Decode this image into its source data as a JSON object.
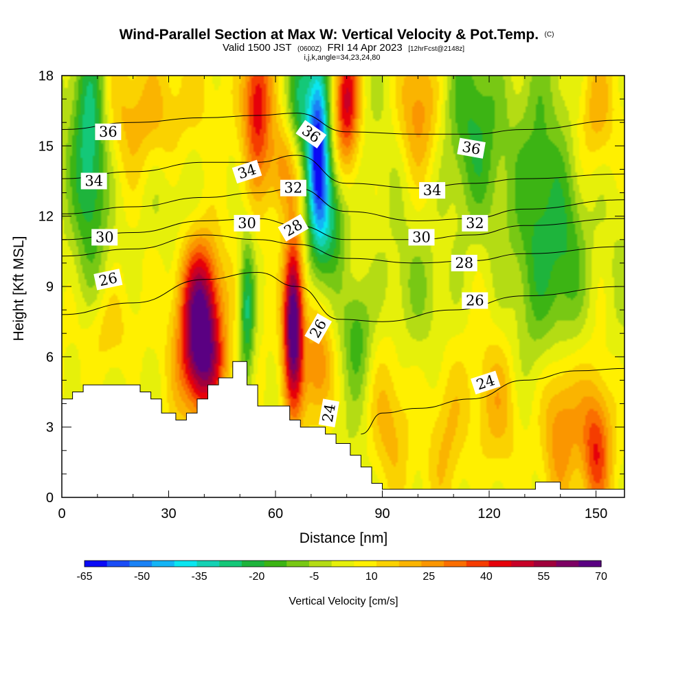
{
  "title": {
    "main": "Wind-Parallel Section at Max W: Vertical Velocity & Pot.Temp.",
    "copyright": "(C)",
    "valid_prefix": "Valid 1500 JST",
    "valid_utc": "(0600Z)",
    "valid_date": "FRI 14 Apr 2023",
    "forecast": "[12hrFcst@2148z]",
    "indices": "i,j,k,angle=34,23,24,80"
  },
  "axes": {
    "xlabel": "Distance [nm]",
    "ylabel": "Height [Kft MSL]",
    "xlim": [
      0,
      158
    ],
    "ylim": [
      0,
      18
    ],
    "xticks": [
      0,
      30,
      60,
      90,
      120,
      150
    ],
    "yticks": [
      0,
      3,
      6,
      9,
      12,
      15,
      18
    ]
  },
  "colorbar": {
    "label": "Vertical Velocity [cm/s]",
    "tick_labels": [
      "-65",
      "-50",
      "-35",
      "-20",
      "-5",
      "10",
      "25",
      "40",
      "55",
      "70"
    ],
    "colors": [
      "#0a0af5",
      "#1a4cf5",
      "#1a82f5",
      "#14b4f5",
      "#0ae6f0",
      "#14d2b4",
      "#14c878",
      "#1eb43c",
      "#3cb414",
      "#78c814",
      "#b4dc14",
      "#e6f00a",
      "#fff000",
      "#fad200",
      "#fab400",
      "#fa9600",
      "#fa6e00",
      "#f53c00",
      "#e6000a",
      "#c80028",
      "#a0003c",
      "#7d0064",
      "#5a0082"
    ],
    "min": -65,
    "max": 70
  },
  "chart_data": {
    "type": "heatmap",
    "title": "Wind-Parallel Section at Max W: Vertical Velocity & Pot.Temp.",
    "xlabel": "Distance [nm]",
    "ylabel": "Height [Kft MSL]",
    "xlim": [
      0,
      158
    ],
    "ylim": [
      0,
      18
    ],
    "field": "Vertical Velocity [cm/s]",
    "field_range": [
      -65,
      70
    ],
    "background_value": 3,
    "features": [
      {
        "x": 39,
        "y": 7.6,
        "sx": 4.2,
        "sy": 2.4,
        "value": 70
      },
      {
        "x": 41,
        "y": 5.4,
        "sx": 5,
        "sy": 1.4,
        "value": 20
      },
      {
        "x": 65,
        "y": 7.6,
        "sx": 2,
        "sy": 2.6,
        "value": 72
      },
      {
        "x": 72,
        "y": 5.6,
        "sx": 3,
        "sy": 1.8,
        "value": 30
      },
      {
        "x": 55,
        "y": 17,
        "sx": 3,
        "sy": 2.5,
        "value": 45
      },
      {
        "x": 62,
        "y": 14,
        "sx": 3,
        "sy": 1.5,
        "value": 25
      },
      {
        "x": 80,
        "y": 17,
        "sx": 2.5,
        "sy": 2,
        "value": 45
      },
      {
        "x": 25,
        "y": 16.5,
        "sx": 10,
        "sy": 2,
        "value": 18
      },
      {
        "x": 52,
        "y": 8,
        "sx": 1.5,
        "sy": 2.2,
        "value": -30
      },
      {
        "x": 72,
        "y": 15,
        "sx": 2.2,
        "sy": 3,
        "value": -65
      },
      {
        "x": 76,
        "y": 12,
        "sx": 3,
        "sy": 1.8,
        "value": -25
      },
      {
        "x": 67,
        "y": 17,
        "sx": 2.5,
        "sy": 2,
        "value": -25
      },
      {
        "x": 8,
        "y": 15.5,
        "sx": 3.5,
        "sy": 3.5,
        "value": -35
      },
      {
        "x": 83,
        "y": 7,
        "sx": 3,
        "sy": 1.8,
        "value": -20
      },
      {
        "x": 115,
        "y": 15.5,
        "sx": 6,
        "sy": 3,
        "value": -20
      },
      {
        "x": 134,
        "y": 13,
        "sx": 5,
        "sy": 4.5,
        "value": -22
      },
      {
        "x": 142,
        "y": 10,
        "sx": 4,
        "sy": 3,
        "value": -20
      },
      {
        "x": 100,
        "y": 16.5,
        "sx": 4,
        "sy": 2,
        "value": 22
      },
      {
        "x": 150,
        "y": 16.5,
        "sx": 4,
        "sy": 2,
        "value": 20
      },
      {
        "x": 140,
        "y": 3,
        "sx": 4,
        "sy": 2.5,
        "value": 30
      },
      {
        "x": 150,
        "y": 2,
        "sx": 3,
        "sy": 2,
        "value": 35
      },
      {
        "x": 108,
        "y": 2.5,
        "sx": 4,
        "sy": 2.5,
        "value": 18
      },
      {
        "x": 92,
        "y": 3,
        "sx": 4,
        "sy": 2,
        "value": 14
      },
      {
        "x": 122,
        "y": 4,
        "sx": 5,
        "sy": 2,
        "value": 14
      },
      {
        "x": 13,
        "y": 7,
        "sx": 5,
        "sy": 1.5,
        "value": 14
      },
      {
        "x": 100,
        "y": 9,
        "sx": 8,
        "sy": 1.5,
        "value": -6
      },
      {
        "x": 30,
        "y": 12.5,
        "sx": 10,
        "sy": 1.5,
        "value": -4
      }
    ],
    "terrain": [
      [
        0,
        4.2
      ],
      [
        3,
        4.2
      ],
      [
        3,
        4.5
      ],
      [
        6,
        4.5
      ],
      [
        6,
        4.8
      ],
      [
        22,
        4.8
      ],
      [
        22,
        4.5
      ],
      [
        25,
        4.5
      ],
      [
        25,
        4.2
      ],
      [
        28,
        4.2
      ],
      [
        28,
        3.6
      ],
      [
        32,
        3.6
      ],
      [
        32,
        3.3
      ],
      [
        35,
        3.3
      ],
      [
        35,
        3.6
      ],
      [
        38,
        3.6
      ],
      [
        38,
        4.2
      ],
      [
        41,
        4.2
      ],
      [
        41,
        4.8
      ],
      [
        44,
        4.8
      ],
      [
        44,
        5.1
      ],
      [
        48,
        5.1
      ],
      [
        48,
        5.8
      ],
      [
        52,
        5.8
      ],
      [
        52,
        4.8
      ],
      [
        55,
        4.8
      ],
      [
        55,
        3.9
      ],
      [
        64,
        3.9
      ],
      [
        64,
        3.3
      ],
      [
        67,
        3.3
      ],
      [
        67,
        3.0
      ],
      [
        74,
        3.0
      ],
      [
        74,
        2.7
      ],
      [
        77,
        2.7
      ],
      [
        77,
        2.3
      ],
      [
        81,
        2.3
      ],
      [
        81,
        1.8
      ],
      [
        84,
        1.8
      ],
      [
        84,
        1.3
      ],
      [
        87,
        1.3
      ],
      [
        87,
        0.6
      ],
      [
        90,
        0.6
      ],
      [
        90,
        0.35
      ],
      [
        133,
        0.35
      ],
      [
        133,
        0.65
      ],
      [
        140,
        0.65
      ],
      [
        140,
        0.35
      ],
      [
        158,
        0.35
      ]
    ],
    "theta_contours": [
      {
        "label": "24",
        "points": [
          [
            84,
            2.7
          ],
          [
            90,
            3.6
          ],
          [
            100,
            3.8
          ],
          [
            115,
            4.2
          ],
          [
            130,
            5.0
          ],
          [
            145,
            5.4
          ],
          [
            158,
            5.5
          ]
        ]
      },
      {
        "label": "26",
        "points": [
          [
            0,
            7.8
          ],
          [
            20,
            8.3
          ],
          [
            40,
            9.3
          ],
          [
            55,
            9.6
          ],
          [
            66,
            9.0
          ],
          [
            78,
            7.6
          ],
          [
            90,
            7.5
          ],
          [
            110,
            8.0
          ],
          [
            130,
            8.6
          ],
          [
            158,
            9.0
          ]
        ]
      },
      {
        "label": "28",
        "points": [
          [
            0,
            10.3
          ],
          [
            20,
            10.6
          ],
          [
            40,
            11.2
          ],
          [
            55,
            11.0
          ],
          [
            66,
            10.8
          ],
          [
            80,
            10.2
          ],
          [
            100,
            10.0
          ],
          [
            115,
            10.1
          ],
          [
            130,
            10.4
          ],
          [
            158,
            10.7
          ]
        ]
      },
      {
        "label": "30",
        "points": [
          [
            0,
            11.0
          ],
          [
            20,
            11.3
          ],
          [
            40,
            11.8
          ],
          [
            55,
            11.9
          ],
          [
            66,
            11.6
          ],
          [
            80,
            11.0
          ],
          [
            100,
            11.0
          ],
          [
            115,
            11.2
          ],
          [
            130,
            11.6
          ],
          [
            158,
            11.9
          ]
        ]
      },
      {
        "label": "32",
        "points": [
          [
            0,
            12.1
          ],
          [
            20,
            12.4
          ],
          [
            40,
            12.8
          ],
          [
            55,
            13.0
          ],
          [
            66,
            13.2
          ],
          [
            80,
            12.2
          ],
          [
            100,
            11.8
          ],
          [
            115,
            11.9
          ],
          [
            130,
            12.3
          ],
          [
            158,
            12.7
          ]
        ]
      },
      {
        "label": "34",
        "points": [
          [
            0,
            13.6
          ],
          [
            20,
            13.9
          ],
          [
            40,
            14.3
          ],
          [
            55,
            14.3
          ],
          [
            66,
            14.6
          ],
          [
            80,
            13.4
          ],
          [
            100,
            13.2
          ],
          [
            115,
            13.4
          ],
          [
            130,
            13.6
          ],
          [
            158,
            13.8
          ]
        ]
      },
      {
        "label": "36",
        "points": [
          [
            0,
            15.7
          ],
          [
            20,
            16.0
          ],
          [
            40,
            16.2
          ],
          [
            55,
            16.3
          ],
          [
            66,
            16.4
          ],
          [
            80,
            15.6
          ],
          [
            100,
            15.5
          ],
          [
            115,
            15.5
          ],
          [
            130,
            15.7
          ],
          [
            158,
            16.1
          ]
        ]
      }
    ],
    "contour_labels": [
      {
        "text": "36",
        "x": 13,
        "y": 15.6,
        "angle": 0
      },
      {
        "text": "34",
        "x": 9,
        "y": 13.5,
        "angle": 0
      },
      {
        "text": "30",
        "x": 12,
        "y": 11.1,
        "angle": 0
      },
      {
        "text": "26",
        "x": 13,
        "y": 9.3,
        "angle": -12
      },
      {
        "text": "34",
        "x": 52,
        "y": 13.9,
        "angle": -18
      },
      {
        "text": "30",
        "x": 52,
        "y": 11.7,
        "angle": 0
      },
      {
        "text": "36",
        "x": 70,
        "y": 15.5,
        "angle": 35
      },
      {
        "text": "32",
        "x": 65,
        "y": 13.2,
        "angle": 0
      },
      {
        "text": "28",
        "x": 65,
        "y": 11.5,
        "angle": -30
      },
      {
        "text": "26",
        "x": 72,
        "y": 7.2,
        "angle": -60
      },
      {
        "text": "24",
        "x": 75,
        "y": 3.6,
        "angle": -80
      },
      {
        "text": "36",
        "x": 115,
        "y": 14.9,
        "angle": 10
      },
      {
        "text": "34",
        "x": 104,
        "y": 13.1,
        "angle": 0
      },
      {
        "text": "32",
        "x": 116,
        "y": 11.7,
        "angle": 0
      },
      {
        "text": "30",
        "x": 101,
        "y": 11.1,
        "angle": 0
      },
      {
        "text": "28",
        "x": 113,
        "y": 10.0,
        "angle": 0
      },
      {
        "text": "26",
        "x": 116,
        "y": 8.4,
        "angle": 0
      },
      {
        "text": "24",
        "x": 119,
        "y": 4.9,
        "angle": -18
      }
    ]
  }
}
